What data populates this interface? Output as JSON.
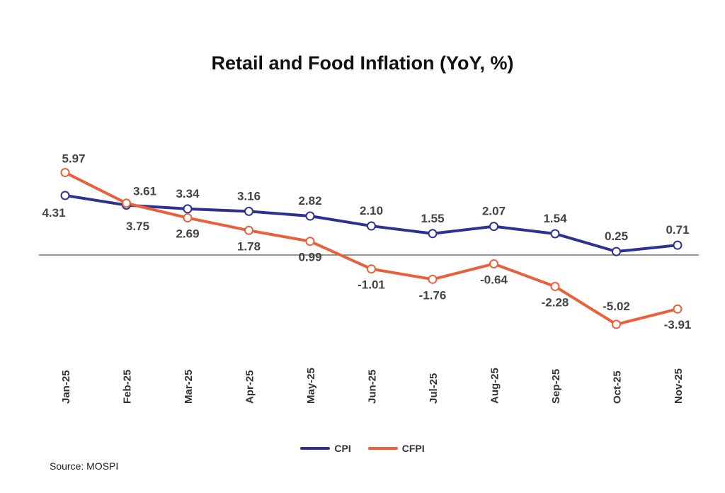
{
  "chart_data": {
    "type": "line",
    "title": "Retail and Food Inflation (YoY, %)",
    "xlabel": "",
    "ylabel": "",
    "categories": [
      "Jan-25",
      "Feb-25",
      "Mar-25",
      "Apr-25",
      "May-25",
      "Jun-25",
      "Jul-25",
      "Aug-25",
      "Sep-25",
      "Oct-25",
      "Nov-25"
    ],
    "series": [
      {
        "name": "CPI",
        "color": "#2e3192",
        "values": [
          4.31,
          3.61,
          3.34,
          3.16,
          2.82,
          2.1,
          1.55,
          2.07,
          1.54,
          0.25,
          0.71
        ]
      },
      {
        "name": "CFPI",
        "color": "#e8613c",
        "values": [
          5.97,
          3.75,
          2.69,
          1.78,
          0.99,
          -1.01,
          -1.76,
          -0.64,
          -2.28,
          -5.02,
          -3.91
        ]
      }
    ],
    "zero_line": true,
    "grid": false,
    "data_labels": true,
    "legend_placement": "bottom"
  },
  "source": "Source: MOSPI"
}
